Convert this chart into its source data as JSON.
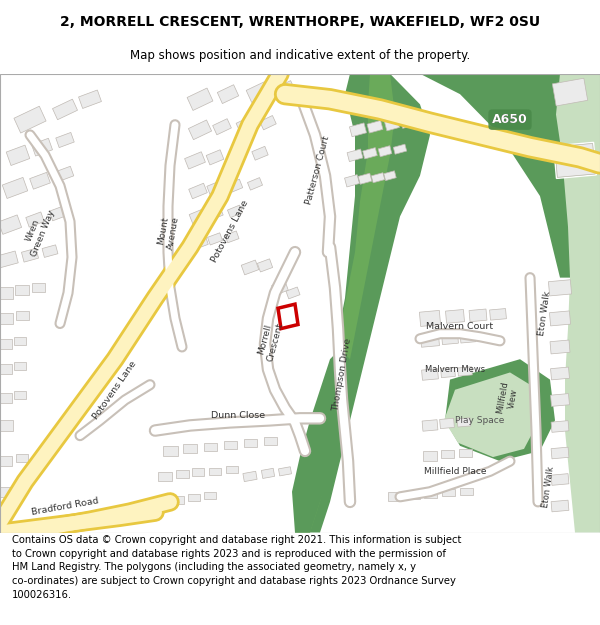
{
  "title_line1": "2, MORRELL CRESCENT, WRENTHORPE, WAKEFIELD, WF2 0SU",
  "title_line2": "Map shows position and indicative extent of the property.",
  "copyright_text": "Contains OS data © Crown copyright and database right 2021. This information is subject\nto Crown copyright and database rights 2023 and is reproduced with the permission of\nHM Land Registry. The polygons (including the associated geometry, namely x, y\nco-ordinates) are subject to Crown copyright and database rights 2023 Ordnance Survey\n100026316.",
  "map_bg": "#ffffff",
  "road_yellow_fill": "#fef3c0",
  "road_yellow_edge": "#e8c840",
  "road_white_fill": "#ffffff",
  "road_gray_edge": "#c8c0b8",
  "green_dark": "#5a9a5a",
  "green_mid": "#6aaa5a",
  "green_light": "#c8dfc0",
  "building_fill": "#ebebeb",
  "building_edge": "#c0bab4",
  "plot_red": "#cc0000",
  "a650_green": "#4a8a4a",
  "title_fontsize": 10,
  "subtitle_fontsize": 8.5,
  "copyright_fontsize": 7.2
}
